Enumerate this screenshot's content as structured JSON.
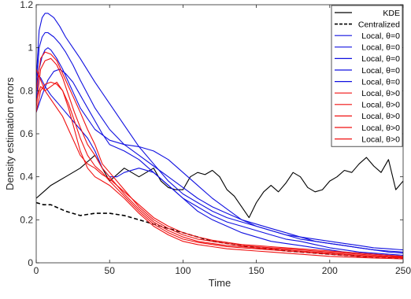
{
  "chart_data": {
    "type": "line",
    "xlabel": "Time",
    "ylabel": "Density estimation errors",
    "xlim": [
      0,
      250
    ],
    "ylim": [
      0,
      1.2
    ],
    "xticks": [
      0,
      50,
      100,
      150,
      200,
      250
    ],
    "yticks": [
      0,
      0.2,
      0.4,
      0.6,
      0.8,
      1,
      1.2
    ],
    "xtick_labels": [
      "0",
      "50",
      "100",
      "150",
      "200",
      "250"
    ],
    "ytick_labels": [
      "0",
      "0.2",
      "0.4",
      "0.6",
      "0.8",
      "1",
      "1.2"
    ],
    "grid": false,
    "legend_position": "top-right",
    "series": [
      {
        "name": "KDE",
        "color": "#000000",
        "style": "solid",
        "x": [
          0,
          5,
          10,
          15,
          20,
          25,
          30,
          35,
          40,
          45,
          50,
          55,
          60,
          65,
          70,
          75,
          80,
          85,
          90,
          95,
          100,
          105,
          110,
          115,
          120,
          125,
          130,
          135,
          140,
          145,
          150,
          155,
          160,
          165,
          170,
          175,
          180,
          185,
          190,
          195,
          200,
          205,
          210,
          215,
          220,
          225,
          230,
          235,
          240,
          245,
          250
        ],
        "y": [
          0.3,
          0.33,
          0.36,
          0.38,
          0.4,
          0.42,
          0.44,
          0.47,
          0.5,
          0.44,
          0.38,
          0.41,
          0.44,
          0.42,
          0.4,
          0.42,
          0.44,
          0.38,
          0.35,
          0.34,
          0.34,
          0.4,
          0.42,
          0.41,
          0.43,
          0.4,
          0.34,
          0.31,
          0.26,
          0.21,
          0.28,
          0.33,
          0.36,
          0.33,
          0.37,
          0.42,
          0.4,
          0.35,
          0.33,
          0.34,
          0.38,
          0.4,
          0.43,
          0.42,
          0.46,
          0.49,
          0.45,
          0.42,
          0.48,
          0.34,
          0.38
        ]
      },
      {
        "name": "Centralized",
        "color": "#000000",
        "style": "dashed",
        "x": [
          0,
          5,
          10,
          20,
          30,
          40,
          50,
          60,
          70,
          80,
          90,
          100,
          110,
          120,
          130,
          140,
          150,
          160,
          170,
          180,
          190,
          200,
          210,
          220,
          230,
          240,
          250
        ],
        "y": [
          0.28,
          0.27,
          0.27,
          0.24,
          0.22,
          0.23,
          0.23,
          0.22,
          0.2,
          0.18,
          0.16,
          0.14,
          0.12,
          0.1,
          0.09,
          0.08,
          0.07,
          0.065,
          0.055,
          0.05,
          0.045,
          0.04,
          0.035,
          0.03,
          0.027,
          0.025,
          0.022
        ]
      },
      {
        "name": "Local, θ=0",
        "color": "#1010e0",
        "style": "solid",
        "x": [
          0,
          2,
          4,
          6,
          8,
          12,
          16,
          20,
          25,
          30,
          40,
          50,
          60,
          70,
          80,
          90,
          100,
          110,
          120,
          130,
          140,
          150,
          160,
          170,
          180,
          190,
          200,
          210,
          220,
          230,
          240,
          250
        ],
        "y": [
          0.85,
          1.08,
          1.14,
          1.16,
          1.16,
          1.14,
          1.1,
          1.05,
          1.0,
          0.95,
          0.84,
          0.74,
          0.64,
          0.54,
          0.46,
          0.38,
          0.32,
          0.28,
          0.24,
          0.21,
          0.19,
          0.17,
          0.15,
          0.13,
          0.12,
          0.11,
          0.1,
          0.09,
          0.08,
          0.07,
          0.065,
          0.06
        ]
      },
      {
        "name": "Local, θ=0",
        "color": "#1010e0",
        "style": "solid",
        "x": [
          0,
          2,
          4,
          6,
          8,
          12,
          16,
          20,
          25,
          30,
          40,
          50,
          60,
          70,
          80,
          90,
          100,
          110,
          120,
          130,
          140,
          150,
          160,
          170,
          180,
          190,
          200,
          210,
          220,
          230,
          240,
          250
        ],
        "y": [
          0.8,
          1.0,
          1.05,
          1.07,
          1.07,
          1.05,
          1.02,
          0.98,
          0.92,
          0.85,
          0.72,
          0.62,
          0.55,
          0.5,
          0.45,
          0.4,
          0.35,
          0.3,
          0.26,
          0.23,
          0.2,
          0.18,
          0.16,
          0.14,
          0.12,
          0.1,
          0.09,
          0.08,
          0.07,
          0.06,
          0.05,
          0.045
        ]
      },
      {
        "name": "Local, θ=0",
        "color": "#1010e0",
        "style": "solid",
        "x": [
          0,
          2,
          4,
          6,
          8,
          10,
          14,
          18,
          22,
          26,
          30,
          40,
          50,
          60,
          70,
          80,
          90,
          100,
          110,
          120,
          130,
          140,
          150,
          160,
          170,
          180,
          190,
          200,
          210,
          220,
          230,
          240,
          250
        ],
        "y": [
          0.75,
          0.9,
          0.96,
          0.99,
          1.0,
          0.99,
          0.95,
          0.9,
          0.84,
          0.78,
          0.72,
          0.62,
          0.57,
          0.55,
          0.54,
          0.52,
          0.48,
          0.42,
          0.36,
          0.3,
          0.25,
          0.2,
          0.17,
          0.15,
          0.13,
          0.11,
          0.1,
          0.09,
          0.08,
          0.07,
          0.06,
          0.055,
          0.05
        ]
      },
      {
        "name": "Local, θ=0",
        "color": "#1010e0",
        "style": "solid",
        "x": [
          0,
          4,
          8,
          12,
          16,
          20,
          25,
          30,
          35,
          40,
          45,
          50,
          60,
          70,
          80,
          90,
          100,
          110,
          120,
          130,
          140,
          150,
          160,
          170,
          180,
          190,
          200,
          210,
          220,
          230,
          240,
          250
        ],
        "y": [
          0.7,
          0.78,
          0.85,
          0.89,
          0.9,
          0.88,
          0.84,
          0.78,
          0.72,
          0.66,
          0.6,
          0.55,
          0.52,
          0.48,
          0.42,
          0.36,
          0.3,
          0.26,
          0.22,
          0.19,
          0.17,
          0.15,
          0.13,
          0.11,
          0.1,
          0.085,
          0.07,
          0.06,
          0.05,
          0.045,
          0.04,
          0.035
        ]
      },
      {
        "name": "Local, θ=0",
        "color": "#1010e0",
        "style": "solid",
        "x": [
          0,
          3,
          6,
          10,
          15,
          20,
          25,
          30,
          35,
          40,
          45,
          50,
          55,
          60,
          70,
          80,
          90,
          100,
          110,
          120,
          130,
          140,
          150,
          160,
          170,
          180,
          190,
          200,
          210,
          220,
          230,
          240,
          250
        ],
        "y": [
          0.88,
          0.86,
          0.82,
          0.78,
          0.74,
          0.7,
          0.66,
          0.62,
          0.58,
          0.52,
          0.44,
          0.4,
          0.4,
          0.42,
          0.44,
          0.42,
          0.36,
          0.3,
          0.24,
          0.2,
          0.17,
          0.14,
          0.12,
          0.1,
          0.09,
          0.08,
          0.07,
          0.06,
          0.05,
          0.045,
          0.04,
          0.035,
          0.03
        ]
      },
      {
        "name": "Local, θ>0",
        "color": "#f01010",
        "style": "solid",
        "x": [
          0,
          3,
          6,
          10,
          14,
          18,
          22,
          26,
          30,
          35,
          40,
          45,
          50,
          60,
          70,
          80,
          90,
          100,
          110,
          120,
          130,
          140,
          150,
          160,
          170,
          180,
          190,
          200,
          210,
          220,
          230,
          240,
          250
        ],
        "y": [
          0.8,
          0.95,
          0.98,
          0.97,
          0.94,
          0.88,
          0.82,
          0.76,
          0.7,
          0.62,
          0.55,
          0.46,
          0.42,
          0.34,
          0.26,
          0.2,
          0.16,
          0.13,
          0.11,
          0.1,
          0.09,
          0.08,
          0.075,
          0.07,
          0.065,
          0.06,
          0.055,
          0.05,
          0.045,
          0.04,
          0.035,
          0.03,
          0.028
        ]
      },
      {
        "name": "Local, θ>0",
        "color": "#f01010",
        "style": "solid",
        "x": [
          0,
          3,
          6,
          10,
          14,
          18,
          22,
          26,
          30,
          35,
          40,
          45,
          50,
          60,
          70,
          80,
          90,
          100,
          110,
          120,
          130,
          140,
          150,
          160,
          170,
          180,
          190,
          200,
          210,
          220,
          230,
          240,
          250
        ],
        "y": [
          0.72,
          0.9,
          0.94,
          0.95,
          0.92,
          0.86,
          0.78,
          0.7,
          0.63,
          0.55,
          0.5,
          0.44,
          0.4,
          0.32,
          0.25,
          0.19,
          0.15,
          0.12,
          0.1,
          0.09,
          0.08,
          0.075,
          0.07,
          0.065,
          0.06,
          0.055,
          0.05,
          0.045,
          0.04,
          0.035,
          0.03,
          0.027,
          0.025
        ]
      },
      {
        "name": "Local, θ>0",
        "color": "#f01010",
        "style": "solid",
        "x": [
          0,
          3,
          6,
          10,
          14,
          18,
          22,
          26,
          30,
          35,
          40,
          45,
          50,
          60,
          70,
          80,
          90,
          100,
          110,
          120,
          130,
          140,
          150,
          160,
          170,
          180,
          190,
          200,
          210,
          220,
          230,
          240,
          250
        ],
        "y": [
          0.9,
          0.85,
          0.8,
          0.82,
          0.84,
          0.8,
          0.74,
          0.66,
          0.58,
          0.5,
          0.45,
          0.42,
          0.38,
          0.31,
          0.24,
          0.18,
          0.14,
          0.11,
          0.095,
          0.085,
          0.075,
          0.07,
          0.065,
          0.06,
          0.055,
          0.05,
          0.045,
          0.04,
          0.035,
          0.03,
          0.027,
          0.025,
          0.022
        ]
      },
      {
        "name": "Local, θ>0",
        "color": "#f01010",
        "style": "solid",
        "x": [
          0,
          3,
          6,
          10,
          14,
          18,
          22,
          26,
          30,
          35,
          40,
          45,
          50,
          60,
          70,
          80,
          90,
          100,
          110,
          120,
          130,
          140,
          150,
          160,
          170,
          180,
          190,
          200,
          210,
          220,
          230,
          240,
          250
        ],
        "y": [
          0.7,
          0.8,
          0.83,
          0.84,
          0.83,
          0.8,
          0.72,
          0.62,
          0.52,
          0.44,
          0.4,
          0.38,
          0.36,
          0.3,
          0.23,
          0.17,
          0.13,
          0.1,
          0.085,
          0.075,
          0.065,
          0.06,
          0.055,
          0.05,
          0.045,
          0.04,
          0.035,
          0.03,
          0.027,
          0.025,
          0.022,
          0.02,
          0.018
        ]
      },
      {
        "name": "Local, θ>0",
        "color": "#f01010",
        "style": "solid",
        "x": [
          0,
          3,
          6,
          10,
          14,
          18,
          22,
          26,
          30,
          35,
          40,
          45,
          50,
          60,
          70,
          80,
          90,
          100,
          110,
          120,
          130,
          140,
          150,
          160,
          170,
          180,
          190,
          200,
          210,
          220,
          230,
          240,
          250
        ],
        "y": [
          0.75,
          0.82,
          0.8,
          0.76,
          0.72,
          0.68,
          0.62,
          0.56,
          0.5,
          0.46,
          0.44,
          0.41,
          0.39,
          0.33,
          0.27,
          0.21,
          0.17,
          0.14,
          0.12,
          0.105,
          0.095,
          0.085,
          0.08,
          0.075,
          0.07,
          0.065,
          0.06,
          0.055,
          0.05,
          0.045,
          0.04,
          0.035,
          0.03
        ]
      }
    ]
  }
}
